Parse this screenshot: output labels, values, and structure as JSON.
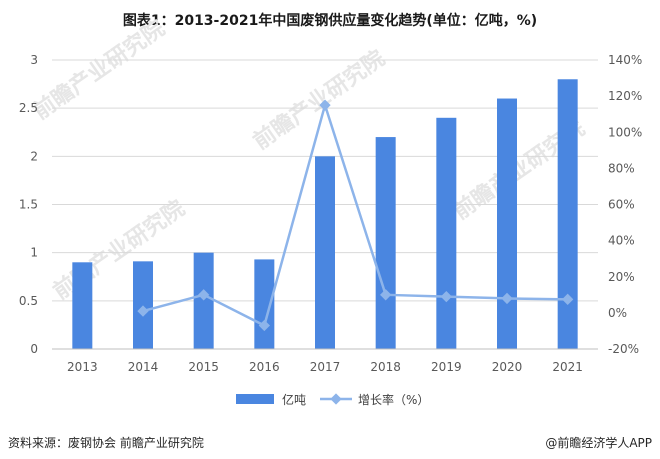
{
  "title": "图表1：2013-2021年中国废钢供应量变化趋势(单位：亿吨，%)",
  "source": "资料来源：废钢协会 前瞻产业研究院",
  "brand": "@前瞻经济学人APP",
  "watermark": "前瞻产业研究院",
  "colors": {
    "bar": "#4a86e0",
    "line": "#8db4ea",
    "grid": "#d9d9d9"
  },
  "chart_data": {
    "type": "bar",
    "categories": [
      "2013",
      "2014",
      "2015",
      "2016",
      "2017",
      "2018",
      "2019",
      "2020",
      "2021"
    ],
    "series": [
      {
        "name": "亿吨",
        "type": "bar",
        "axis": "left",
        "values": [
          0.9,
          0.91,
          1.0,
          0.93,
          2.0,
          2.2,
          2.4,
          2.6,
          2.8
        ]
      },
      {
        "name": "增长率（%）",
        "type": "line",
        "axis": "right",
        "values": [
          null,
          1,
          10,
          -7,
          115,
          10,
          9,
          8,
          7.5
        ]
      }
    ],
    "ylim_left": [
      0,
      3
    ],
    "yticks_left": [
      "0",
      "0.5",
      "1",
      "1.5",
      "2",
      "2.5",
      "3"
    ],
    "ylim_right": [
      -20,
      140
    ],
    "yticks_right": [
      "-20%",
      "0%",
      "20%",
      "40%",
      "60%",
      "80%",
      "100%",
      "120%",
      "140%"
    ],
    "grid": true,
    "legend_position": "bottom"
  }
}
